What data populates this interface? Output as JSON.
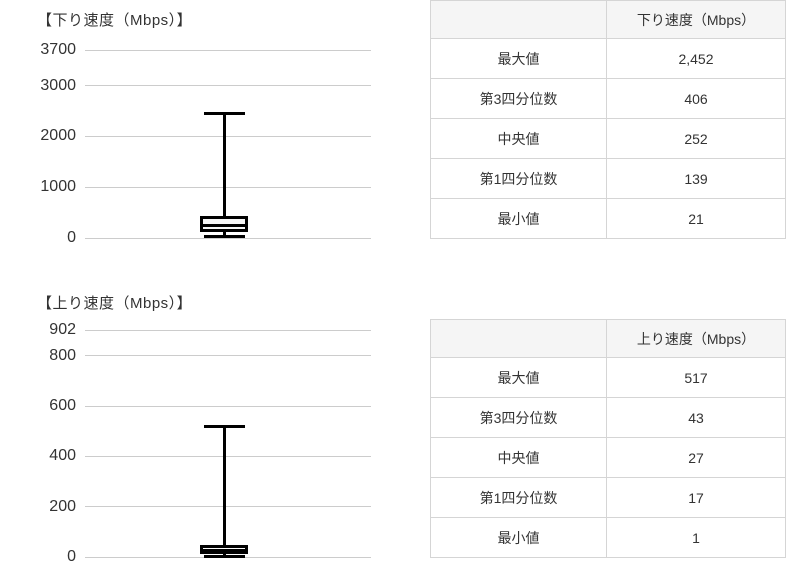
{
  "chart_data": [
    {
      "type": "boxplot",
      "title": "【下り速度（Mbps）】",
      "ylim": [
        0,
        3700
      ],
      "yticks": [
        3700,
        3000,
        2000,
        1000,
        0
      ],
      "grid": true,
      "legend": "none",
      "stats": {
        "max": 2452,
        "q3": 406,
        "median": 252,
        "q1": 139,
        "min": 21
      }
    },
    {
      "type": "boxplot",
      "title": "【上り速度（Mbps）】",
      "ylim": [
        0,
        902
      ],
      "yticks": [
        902,
        800,
        600,
        400,
        200,
        0
      ],
      "grid": true,
      "legend": "none",
      "stats": {
        "max": 517,
        "q3": 43,
        "median": 27,
        "q1": 17,
        "min": 1
      }
    }
  ],
  "tables": [
    {
      "value_header": "下り速度（Mbps）",
      "rows": [
        {
          "label": "最大値",
          "value": "2,452"
        },
        {
          "label": "第3四分位数",
          "value": "406"
        },
        {
          "label": "中央値",
          "value": "252"
        },
        {
          "label": "第1四分位数",
          "value": "139"
        },
        {
          "label": "最小値",
          "value": "21"
        }
      ]
    },
    {
      "value_header": "上り速度（Mbps）",
      "rows": [
        {
          "label": "最大値",
          "value": "517"
        },
        {
          "label": "第3四分位数",
          "value": "43"
        },
        {
          "label": "中央値",
          "value": "27"
        },
        {
          "label": "第1四分位数",
          "value": "17"
        },
        {
          "label": "最小値",
          "value": "1"
        }
      ]
    }
  ],
  "colors": {
    "text": "#333333",
    "gridline": "#cccccc",
    "box_stroke": "#000000",
    "box_fill": "#f7f7f7",
    "table_border": "#d5d5d5",
    "table_header_bg": "#f5f5f5"
  }
}
